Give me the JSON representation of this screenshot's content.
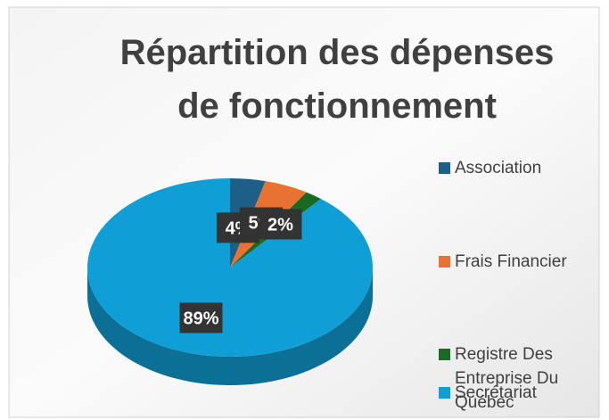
{
  "chart_data": {
    "type": "pie",
    "title": "Répartition des dépenses de fonctionnement",
    "categories": [
      "Association",
      "Frais Financier",
      "Registre Des Entreprise Du Québec",
      "Secrétariat"
    ],
    "values": [
      4,
      5,
      2,
      89
    ],
    "value_labels": [
      "4%",
      "5%",
      "2%",
      "89%"
    ],
    "colors": [
      "#1d5f86",
      "#e97132",
      "#196b24",
      "#0f9ed5"
    ],
    "legend": "right"
  }
}
